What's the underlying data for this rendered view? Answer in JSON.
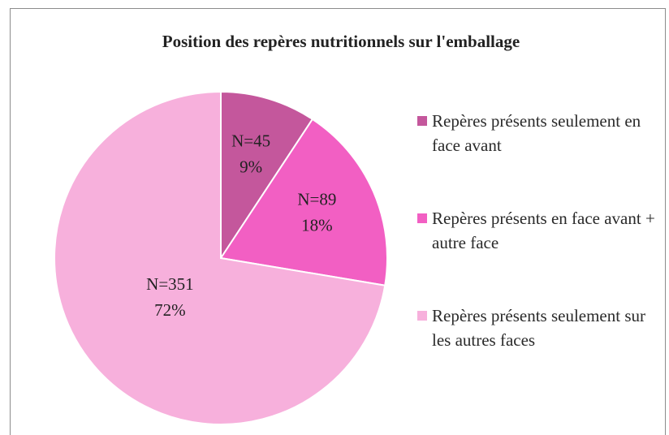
{
  "chart_data": {
    "type": "pie",
    "title": "Position des repères nutritionnels sur l'emballage",
    "categories": [
      "Repères présents seulement en face avant",
      "Repères présents en face avant + autre face",
      "Repères présents seulement sur les autres faces"
    ],
    "values": [
      45,
      89,
      351
    ],
    "value_labels": [
      "N=45",
      "N=89",
      "N=351"
    ],
    "percent_labels": [
      "9%",
      "18%",
      "72%"
    ],
    "colors": [
      "#c4579c",
      "#f25fc3",
      "#f7b0dc"
    ],
    "legend": "right"
  }
}
